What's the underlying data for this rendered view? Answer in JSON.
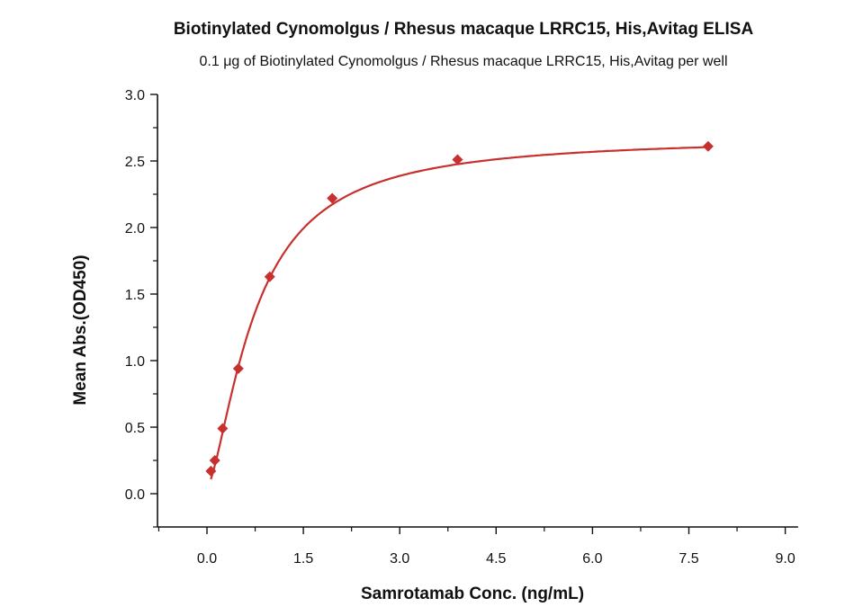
{
  "chart_data": {
    "type": "scatter",
    "title": "Biotinylated Cynomolgus / Rhesus macaque LRRC15, His,Avitag ELISA",
    "subtitle": "0.1 μg of Biotinylated Cynomolgus / Rhesus macaque LRRC15, His,Avitag per well",
    "xlabel": "Samrotamab Conc. (ng/mL)",
    "ylabel": "Mean Abs.(OD450)",
    "xlim": [
      -0.77,
      9.2
    ],
    "ylim": [
      -0.25,
      3.0
    ],
    "xticks": [
      "0.0",
      "1.5",
      "3.0",
      "4.5",
      "6.0",
      "7.5",
      "9.0"
    ],
    "yticks": [
      "0.0",
      "0.5",
      "1.0",
      "1.5",
      "2.0",
      "2.5",
      "3.0"
    ],
    "grid": false,
    "fit": "4-parameter logistic curve",
    "marker": "diamond",
    "color": "#c8302e",
    "x": [
      0.061,
      0.122,
      0.244,
      0.488,
      0.977,
      1.95,
      3.9,
      7.8
    ],
    "y": [
      0.17,
      0.25,
      0.49,
      0.94,
      1.63,
      2.22,
      2.51,
      2.61
    ]
  }
}
